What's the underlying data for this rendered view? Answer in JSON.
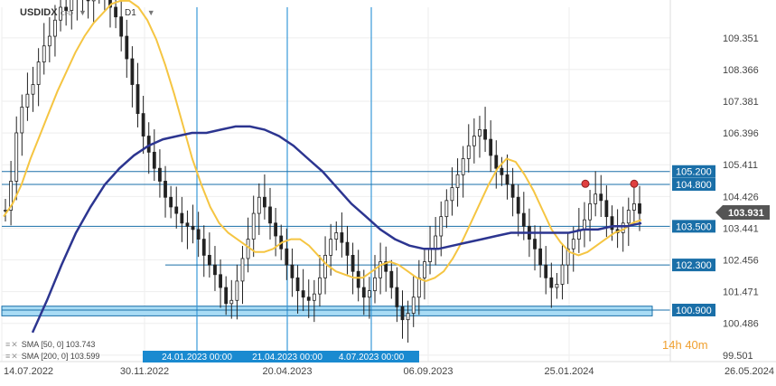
{
  "header": {
    "symbol": "USDIDX",
    "type": "CFD",
    "timeframe": "D1"
  },
  "legend": [
    {
      "label": "SMA [50, 0]",
      "value": "103.743"
    },
    {
      "label": "SMA [200, 0]",
      "value": "103.599"
    }
  ],
  "countdown": {
    "hours": "14",
    "h_unit": "h",
    "minutes": "40",
    "m_unit": "m"
  },
  "colors": {
    "candle": "#222222",
    "sma50": "#f5c542",
    "sma200": "#2c3590",
    "hline": "#1a6fa8",
    "vline": "#3a9ad8",
    "label_bg": "#1a6fa8",
    "price_bg": "#555555"
  },
  "chart_data": {
    "type": "candlestick",
    "title": "USDIDX",
    "ylim": [
      99.3,
      110.3
    ],
    "y_ticks": [
      "109.351",
      "108.366",
      "107.381",
      "106.396",
      "105.411",
      "104.426",
      "103.441",
      "102.456",
      "101.471",
      "100.486",
      "99.501"
    ],
    "x_ticks": [
      "14.07.2022",
      "30.11.2022",
      "20.04.2023",
      "06.09.2023",
      "25.01.2024",
      "26.05.2024"
    ],
    "current_price": "103.931",
    "h_levels": [
      {
        "label": "105.200",
        "value": 105.2
      },
      {
        "label": "104.800",
        "value": 104.8
      },
      {
        "label": "103.500",
        "value": 103.5
      },
      {
        "label": "102.300",
        "value": 102.3
      },
      {
        "label": "100.900",
        "value": 100.9
      }
    ],
    "zone": {
      "from": 100.72,
      "to": 101.02
    },
    "v_markers": [
      "24.01.2023 00:00",
      "21.04.2023 00:00",
      "4.07.2023 00:00"
    ],
    "close": [
      104.0,
      104.9,
      106.4,
      107.2,
      107.6,
      107.9,
      108.6,
      109.1,
      109.4,
      109.9,
      110.3,
      110.2,
      110.6,
      110.6,
      110.9,
      110.5,
      110.8,
      111.0,
      110.7,
      110.3,
      110.0,
      109.4,
      108.7,
      107.9,
      107.0,
      106.3,
      105.8,
      105.3,
      104.9,
      104.4,
      104.1,
      103.9,
      103.6,
      103.5,
      103.4,
      103.1,
      102.6,
      102.3,
      102.0,
      101.6,
      101.1,
      101.2,
      101.8,
      102.5,
      103.1,
      103.9,
      104.4,
      104.1,
      103.6,
      103.2,
      102.8,
      102.3,
      101.9,
      101.5,
      101.3,
      101.2,
      101.4,
      101.9,
      102.6,
      103.1,
      103.3,
      103.0,
      102.6,
      102.1,
      101.6,
      101.3,
      101.5,
      101.9,
      102.4,
      102.1,
      101.6,
      101.0,
      100.6,
      100.8,
      101.3,
      101.9,
      102.4,
      102.8,
      103.2,
      103.8,
      104.3,
      104.7,
      105.1,
      105.6,
      106.0,
      106.3,
      106.5,
      106.2,
      105.7,
      105.3,
      105.1,
      104.8,
      104.4,
      103.9,
      103.5,
      103.1,
      102.8,
      102.3,
      101.9,
      101.6,
      101.7,
      102.3,
      102.8,
      103.1,
      103.4,
      103.7,
      104.2,
      104.5,
      104.3,
      103.8,
      103.4,
      103.3,
      103.6,
      104.0,
      104.2,
      103.9
    ],
    "sma50": [
      103.8,
      104.2,
      104.8,
      105.6,
      106.3,
      107.0,
      107.7,
      108.3,
      108.9,
      109.4,
      109.8,
      110.1,
      110.4,
      110.5,
      110.5,
      110.3,
      109.9,
      109.3,
      108.5,
      107.6,
      106.6,
      105.6,
      104.8,
      104.1,
      103.6,
      103.3,
      103.1,
      102.9,
      102.7,
      102.7,
      102.8,
      103.0,
      103.1,
      103.1,
      102.9,
      102.6,
      102.3,
      102.1,
      102.0,
      101.9,
      101.9,
      102.1,
      102.3,
      102.4,
      102.3,
      102.1,
      101.9,
      101.8,
      101.9,
      102.1,
      102.5,
      103.0,
      103.6,
      104.2,
      104.8,
      105.3,
      105.6,
      105.5,
      105.1,
      104.6,
      104.0,
      103.4,
      103.0,
      102.7,
      102.6,
      102.7,
      102.9,
      103.1,
      103.3,
      103.4,
      103.6,
      103.7
    ],
    "sma200": [
      100.2,
      101.2,
      102.3,
      103.3,
      104.1,
      104.8,
      105.3,
      105.7,
      106.0,
      106.2,
      106.3,
      106.4,
      106.4,
      106.5,
      106.6,
      106.6,
      106.5,
      106.3,
      106.0,
      105.6,
      105.2,
      104.7,
      104.2,
      103.8,
      103.4,
      103.1,
      102.9,
      102.8,
      102.8,
      102.9,
      103.0,
      103.1,
      103.2,
      103.3,
      103.3,
      103.3,
      103.3,
      103.3,
      103.4,
      103.4,
      103.5,
      103.5,
      103.6
    ]
  }
}
